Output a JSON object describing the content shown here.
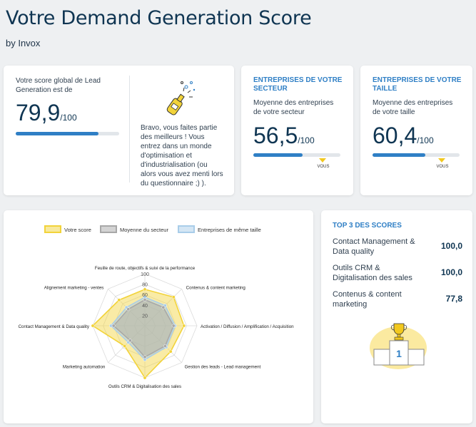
{
  "header": {
    "title": "Votre Demand Generation Score",
    "byline": "by Invox"
  },
  "global_card": {
    "label": "Votre score global de Lead Generation est de",
    "score": "79,9",
    "unit": "/100",
    "progress": 0.799,
    "message": "Bravo, vous faites partie des meilleurs ! Vous entrez dans un monde d'optimisation et d'industrialisation (ou alors vous avez menti lors du questionnaire ;) )."
  },
  "sector_card": {
    "title": "ENTREPRISES DE VOTRE SECTEUR",
    "subtitle": "Moyenne des entreprises de votre secteur",
    "score": "56,5",
    "unit": "/100",
    "progress": 0.565,
    "you_label": "VOUS",
    "you_position": 0.799
  },
  "size_card": {
    "title": "ENTREPRISES DE VOTRE TAILLE",
    "subtitle": "Moyenne des entreprises de votre taille",
    "score": "60,4",
    "unit": "/100",
    "progress": 0.604,
    "you_label": "VOUS",
    "you_position": 0.799
  },
  "top_scores": {
    "title": "TOP 3 DES SCORES",
    "items": [
      {
        "label": "Contact Management & Data quality",
        "value": "100,0"
      },
      {
        "label": "Outils CRM & Digitalisation des sales",
        "value": "100,0"
      },
      {
        "label": "Contenus & content marketing",
        "value": "77,8"
      }
    ],
    "trophy_icon": "trophy-podium-icon"
  },
  "chart_data": {
    "type": "radar",
    "legend": [
      "Votre score",
      "Moyenne du secteur",
      "Entreprises de même taille"
    ],
    "axes": [
      "Feuille de route, objectifs & suivi de la performance",
      "Contenus & content marketing",
      "Activation / Diffusion / Amplification / Acquisition",
      "Gestion des leads - Lead management",
      "Outils CRM & Digitalisation des sales",
      "Marketing automation",
      "Contact Management & Data quality",
      "Alignement marketing - ventes"
    ],
    "ticks": [
      20,
      40,
      60,
      80,
      100
    ],
    "rmax": 100,
    "series": [
      {
        "name": "Votre score",
        "values": [
          70,
          78,
          75,
          70,
          100,
          55,
          100,
          70
        ],
        "color": "#f2d33a"
      },
      {
        "name": "Moyenne du secteur",
        "values": [
          50,
          50,
          55,
          55,
          60,
          40,
          60,
          45
        ],
        "color": "#a8a8a8"
      },
      {
        "name": "Entreprises de même taille",
        "values": [
          55,
          55,
          58,
          58,
          65,
          45,
          65,
          50
        ],
        "color": "#a9cde9"
      }
    ]
  }
}
